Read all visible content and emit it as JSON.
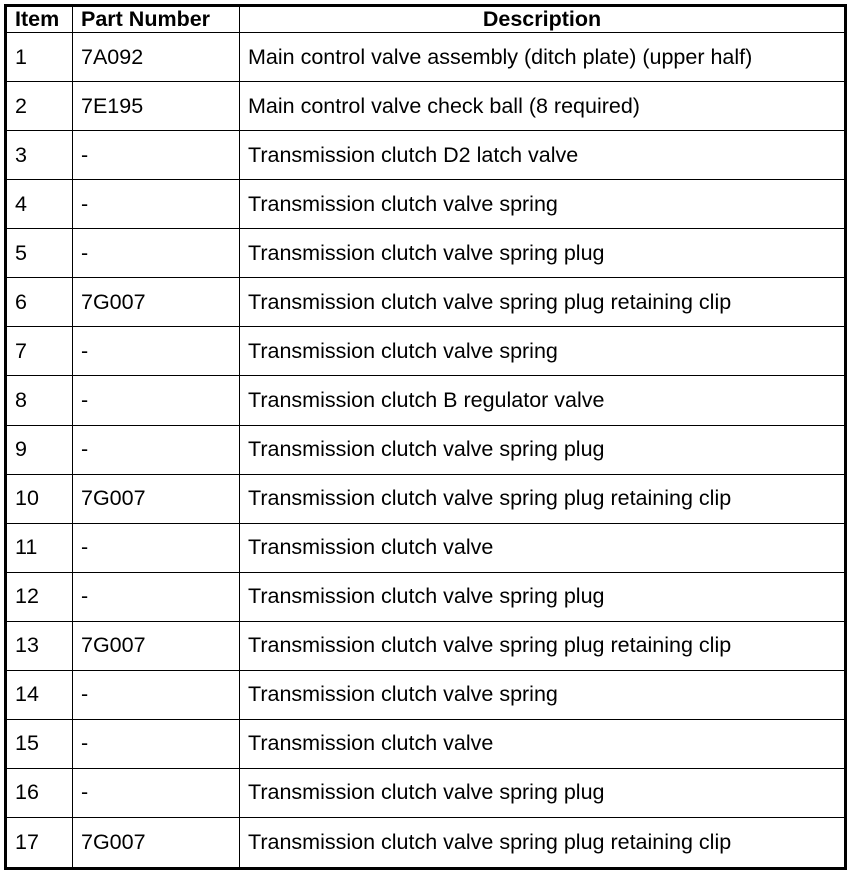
{
  "table": {
    "headers": [
      "Item",
      "Part Number",
      "Description"
    ],
    "rows": [
      [
        "1",
        "7A092",
        "Main control valve assembly (ditch plate) (upper half)"
      ],
      [
        "2",
        "7E195",
        "Main control valve check ball (8 required)"
      ],
      [
        "3",
        "-",
        "Transmission clutch D2 latch valve"
      ],
      [
        "4",
        "-",
        "Transmission clutch valve spring"
      ],
      [
        "5",
        "-",
        "Transmission clutch valve spring plug"
      ],
      [
        "6",
        "7G007",
        "Transmission clutch valve spring plug retaining clip"
      ],
      [
        "7",
        "-",
        "Transmission clutch valve spring"
      ],
      [
        "8",
        "-",
        "Transmission clutch B regulator valve"
      ],
      [
        "9",
        "-",
        "Transmission clutch valve spring plug"
      ],
      [
        "10",
        "7G007",
        "Transmission clutch valve spring plug retaining clip"
      ],
      [
        "11",
        "-",
        "Transmission clutch valve"
      ],
      [
        "12",
        "-",
        "Transmission clutch valve spring plug"
      ],
      [
        "13",
        "7G007",
        "Transmission clutch valve spring plug retaining clip"
      ],
      [
        "14",
        "-",
        "Transmission clutch valve spring"
      ],
      [
        "15",
        "-",
        "Transmission clutch valve"
      ],
      [
        "16",
        "-",
        "Transmission clutch valve spring plug"
      ],
      [
        "17",
        "7G007",
        "Transmission clutch valve spring plug retaining clip"
      ]
    ]
  }
}
